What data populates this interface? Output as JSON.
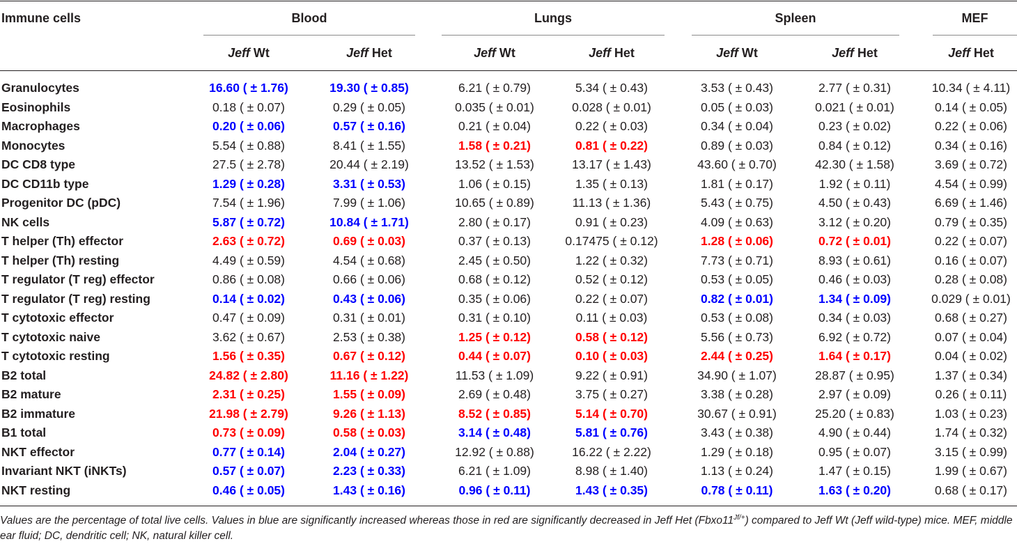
{
  "header": {
    "row_label": "Immune cells",
    "groups": [
      "Blood",
      "Lungs",
      "Spleen",
      "MEF"
    ],
    "jeff": "Jeff",
    "columns": [
      {
        "geno": "Wt"
      },
      {
        "geno": "Het"
      },
      {
        "geno": "Wt"
      },
      {
        "geno": "Het"
      },
      {
        "geno": "Wt"
      },
      {
        "geno": "Het"
      },
      {
        "geno": "Het"
      }
    ]
  },
  "legend_colors": {
    "increased": "#0000ff",
    "decreased": "#ff0000"
  },
  "rows": [
    {
      "label": "Granulocytes",
      "cells": [
        {
          "v": "16.60 ( ± 1.76)",
          "s": "up"
        },
        {
          "v": "19.30 ( ± 0.85)",
          "s": "up"
        },
        {
          "v": "6.21 ( ± 0.79)",
          "s": ""
        },
        {
          "v": "5.34 ( ± 0.43)",
          "s": ""
        },
        {
          "v": "3.53 ( ± 0.43)",
          "s": ""
        },
        {
          "v": "2.77 ( ± 0.31)",
          "s": ""
        },
        {
          "v": "10.34 ( ± 4.11)",
          "s": ""
        }
      ]
    },
    {
      "label": "Eosinophils",
      "cells": [
        {
          "v": "0.18 ( ± 0.07)",
          "s": ""
        },
        {
          "v": "0.29 ( ± 0.05)",
          "s": ""
        },
        {
          "v": "0.035 ( ± 0.01)",
          "s": ""
        },
        {
          "v": "0.028 ( ± 0.01)",
          "s": ""
        },
        {
          "v": "0.05 ( ± 0.03)",
          "s": ""
        },
        {
          "v": "0.021 ( ± 0.01)",
          "s": ""
        },
        {
          "v": "0.14 ( ± 0.05)",
          "s": ""
        }
      ]
    },
    {
      "label": "Macrophages",
      "cells": [
        {
          "v": "0.20 ( ± 0.06)",
          "s": "up"
        },
        {
          "v": "0.57 ( ± 0.16)",
          "s": "up"
        },
        {
          "v": "0.21 ( ± 0.04)",
          "s": ""
        },
        {
          "v": "0.22 ( ± 0.03)",
          "s": ""
        },
        {
          "v": "0.34 ( ± 0.04)",
          "s": ""
        },
        {
          "v": "0.23 ( ± 0.02)",
          "s": ""
        },
        {
          "v": "0.22 ( ± 0.06)",
          "s": ""
        }
      ]
    },
    {
      "label": "Monocytes",
      "cells": [
        {
          "v": "5.54 ( ± 0.88)",
          "s": ""
        },
        {
          "v": "8.41 ( ± 1.55)",
          "s": ""
        },
        {
          "v": "1.58 ( ± 0.21)",
          "s": "down"
        },
        {
          "v": "0.81 ( ± 0.22)",
          "s": "down"
        },
        {
          "v": "0.89 ( ± 0.03)",
          "s": ""
        },
        {
          "v": "0.84 ( ± 0.12)",
          "s": ""
        },
        {
          "v": "0.34 ( ± 0.16)",
          "s": ""
        }
      ]
    },
    {
      "label": "DC CD8 type",
      "cells": [
        {
          "v": "27.5 ( ± 2.78)",
          "s": ""
        },
        {
          "v": "20.44 ( ± 2.19)",
          "s": ""
        },
        {
          "v": "13.52 ( ± 1.53)",
          "s": ""
        },
        {
          "v": "13.17 ( ± 1.43)",
          "s": ""
        },
        {
          "v": "43.60 ( ± 0.70)",
          "s": ""
        },
        {
          "v": "42.30 ( ± 1.58)",
          "s": ""
        },
        {
          "v": "3.69 ( ± 0.72)",
          "s": ""
        }
      ]
    },
    {
      "label": "DC CD11b type",
      "cells": [
        {
          "v": "1.29 ( ± 0.28)",
          "s": "up"
        },
        {
          "v": "3.31 ( ± 0.53)",
          "s": "up"
        },
        {
          "v": "1.06 ( ± 0.15)",
          "s": ""
        },
        {
          "v": "1.35 ( ± 0.13)",
          "s": ""
        },
        {
          "v": "1.81 ( ± 0.17)",
          "s": ""
        },
        {
          "v": "1.92 ( ± 0.11)",
          "s": ""
        },
        {
          "v": "4.54 ( ± 0.99)",
          "s": ""
        }
      ]
    },
    {
      "label": "Progenitor DC (pDC)",
      "cells": [
        {
          "v": "7.54 ( ± 1.96)",
          "s": ""
        },
        {
          "v": "7.99 ( ± 1.06)",
          "s": ""
        },
        {
          "v": "10.65 ( ± 0.89)",
          "s": ""
        },
        {
          "v": "11.13 ( ± 1.36)",
          "s": ""
        },
        {
          "v": "5.43 ( ± 0.75)",
          "s": ""
        },
        {
          "v": "4.50 ( ± 0.43)",
          "s": ""
        },
        {
          "v": "6.69 ( ± 1.46)",
          "s": ""
        }
      ]
    },
    {
      "label": "NK cells",
      "cells": [
        {
          "v": "5.87 ( ± 0.72)",
          "s": "up"
        },
        {
          "v": "10.84 ( ± 1.71)",
          "s": "up"
        },
        {
          "v": "2.80 ( ± 0.17)",
          "s": ""
        },
        {
          "v": "0.91 ( ± 0.23)",
          "s": ""
        },
        {
          "v": "4.09 ( ± 0.63)",
          "s": ""
        },
        {
          "v": "3.12 ( ± 0.20)",
          "s": ""
        },
        {
          "v": "0.79 ( ± 0.35)",
          "s": ""
        }
      ]
    },
    {
      "label": "T helper (Th) effector",
      "cells": [
        {
          "v": "2.63 ( ± 0.72)",
          "s": "down"
        },
        {
          "v": "0.69 ( ± 0.03)",
          "s": "down"
        },
        {
          "v": "0.37 ( ± 0.13)",
          "s": ""
        },
        {
          "v": "0.17475 ( ± 0.12)",
          "s": ""
        },
        {
          "v": "1.28 ( ± 0.06)",
          "s": "down"
        },
        {
          "v": "0.72 ( ± 0.01)",
          "s": "down"
        },
        {
          "v": "0.22 ( ± 0.07)",
          "s": ""
        }
      ]
    },
    {
      "label": "T helper (Th) resting",
      "cells": [
        {
          "v": "4.49 ( ± 0.59)",
          "s": ""
        },
        {
          "v": "4.54 ( ± 0.68)",
          "s": ""
        },
        {
          "v": "2.45 ( ± 0.50)",
          "s": ""
        },
        {
          "v": "1.22 ( ± 0.32)",
          "s": ""
        },
        {
          "v": "7.73 ( ± 0.71)",
          "s": ""
        },
        {
          "v": "8.93 ( ± 0.61)",
          "s": ""
        },
        {
          "v": "0.16 ( ± 0.07)",
          "s": ""
        }
      ]
    },
    {
      "label": "T regulator (T reg) effector",
      "cells": [
        {
          "v": "0.86 ( ± 0.08)",
          "s": ""
        },
        {
          "v": "0.66 ( ± 0.06)",
          "s": ""
        },
        {
          "v": "0.68 ( ± 0.12)",
          "s": ""
        },
        {
          "v": "0.52 ( ± 0.12)",
          "s": ""
        },
        {
          "v": "0.53 ( ± 0.05)",
          "s": ""
        },
        {
          "v": "0.46 ( ± 0.03)",
          "s": ""
        },
        {
          "v": "0.28 ( ± 0.08)",
          "s": ""
        }
      ]
    },
    {
      "label": "T regulator (T reg) resting",
      "cells": [
        {
          "v": "0.14 ( ± 0.02)",
          "s": "up"
        },
        {
          "v": "0.43 ( ± 0.06)",
          "s": "up"
        },
        {
          "v": "0.35 ( ± 0.06)",
          "s": ""
        },
        {
          "v": "0.22 ( ± 0.07)",
          "s": ""
        },
        {
          "v": "0.82 ( ± 0.01)",
          "s": "up"
        },
        {
          "v": "1.34 ( ± 0.09)",
          "s": "up"
        },
        {
          "v": "0.029 ( ± 0.01)",
          "s": ""
        }
      ]
    },
    {
      "label": "T cytotoxic effector",
      "cells": [
        {
          "v": "0.47 ( ± 0.09)",
          "s": ""
        },
        {
          "v": "0.31 ( ± 0.01)",
          "s": ""
        },
        {
          "v": "0.31 ( ± 0.10)",
          "s": ""
        },
        {
          "v": "0.11 ( ± 0.03)",
          "s": ""
        },
        {
          "v": "0.53 ( ± 0.08)",
          "s": ""
        },
        {
          "v": "0.34 ( ± 0.03)",
          "s": ""
        },
        {
          "v": "0.68 ( ± 0.27)",
          "s": ""
        }
      ]
    },
    {
      "label": "T cytotoxic naive",
      "cells": [
        {
          "v": "3.62 ( ± 0.67)",
          "s": ""
        },
        {
          "v": "2.53 ( ± 0.38)",
          "s": ""
        },
        {
          "v": "1.25 ( ± 0.12)",
          "s": "down"
        },
        {
          "v": "0.58 ( ± 0.12)",
          "s": "down"
        },
        {
          "v": "5.56 ( ± 0.73)",
          "s": ""
        },
        {
          "v": "6.92 ( ± 0.72)",
          "s": ""
        },
        {
          "v": "0.07 ( ± 0.04)",
          "s": ""
        }
      ]
    },
    {
      "label": "T cytotoxic resting",
      "cells": [
        {
          "v": "1.56 ( ± 0.35)",
          "s": "down"
        },
        {
          "v": "0.67 ( ± 0.12)",
          "s": "down"
        },
        {
          "v": "0.44 ( ± 0.07)",
          "s": "down"
        },
        {
          "v": "0.10 ( ± 0.03)",
          "s": "down"
        },
        {
          "v": "2.44 ( ± 0.25)",
          "s": "down"
        },
        {
          "v": "1.64 ( ± 0.17)",
          "s": "down"
        },
        {
          "v": "0.04 ( ± 0.02)",
          "s": ""
        }
      ]
    },
    {
      "label": "B2 total",
      "cells": [
        {
          "v": "24.82 ( ± 2.80)",
          "s": "down"
        },
        {
          "v": "11.16 ( ± 1.22)",
          "s": "down"
        },
        {
          "v": "11.53 ( ± 1.09)",
          "s": ""
        },
        {
          "v": "9.22 ( ± 0.91)",
          "s": ""
        },
        {
          "v": "34.90 ( ± 1.07)",
          "s": ""
        },
        {
          "v": "28.87 ( ± 0.95)",
          "s": ""
        },
        {
          "v": "1.37 ( ± 0.34)",
          "s": ""
        }
      ]
    },
    {
      "label": "B2 mature",
      "cells": [
        {
          "v": "2.31 ( ± 0.25)",
          "s": "down"
        },
        {
          "v": "1.55 ( ± 0.09)",
          "s": "down"
        },
        {
          "v": "2.69 ( ± 0.48)",
          "s": ""
        },
        {
          "v": "3.75 ( ± 0.27)",
          "s": ""
        },
        {
          "v": "3.38 ( ± 0.28)",
          "s": ""
        },
        {
          "v": "2.97 ( ± 0.09)",
          "s": ""
        },
        {
          "v": "0.26 ( ± 0.11)",
          "s": ""
        }
      ]
    },
    {
      "label": "B2 immature",
      "cells": [
        {
          "v": "21.98 ( ± 2.79)",
          "s": "down"
        },
        {
          "v": "9.26 ( ± 1.13)",
          "s": "down"
        },
        {
          "v": "8.52 ( ± 0.85)",
          "s": "down"
        },
        {
          "v": "5.14 ( ± 0.70)",
          "s": "down"
        },
        {
          "v": "30.67 ( ± 0.91)",
          "s": ""
        },
        {
          "v": "25.20 ( ± 0.83)",
          "s": ""
        },
        {
          "v": "1.03 ( ± 0.23)",
          "s": ""
        }
      ]
    },
    {
      "label": "B1 total",
      "cells": [
        {
          "v": "0.73 ( ± 0.09)",
          "s": "down"
        },
        {
          "v": "0.58 ( ± 0.03)",
          "s": "down"
        },
        {
          "v": "3.14 ( ± 0.48)",
          "s": "up"
        },
        {
          "v": "5.81 ( ± 0.76)",
          "s": "up"
        },
        {
          "v": "3.43 ( ± 0.38)",
          "s": ""
        },
        {
          "v": "4.90 ( ± 0.44)",
          "s": ""
        },
        {
          "v": "1.74 ( ± 0.32)",
          "s": ""
        }
      ]
    },
    {
      "label": "NKT effector",
      "cells": [
        {
          "v": "0.77 ( ± 0.14)",
          "s": "up"
        },
        {
          "v": "2.04 ( ± 0.27)",
          "s": "up"
        },
        {
          "v": "12.92 ( ± 0.88)",
          "s": ""
        },
        {
          "v": "16.22 ( ± 2.22)",
          "s": ""
        },
        {
          "v": "1.29 ( ± 0.18)",
          "s": ""
        },
        {
          "v": "0.95 ( ± 0.07)",
          "s": ""
        },
        {
          "v": "3.15 ( ± 0.99)",
          "s": ""
        }
      ]
    },
    {
      "label": "Invariant NKT (iNKTs)",
      "cells": [
        {
          "v": "0.57 ( ± 0.07)",
          "s": "up"
        },
        {
          "v": "2.23 ( ± 0.33)",
          "s": "up"
        },
        {
          "v": "6.21 ( ± 1.09)",
          "s": ""
        },
        {
          "v": "8.98 ( ± 1.40)",
          "s": ""
        },
        {
          "v": "1.13 ( ± 0.24)",
          "s": ""
        },
        {
          "v": "1.47 ( ± 0.15)",
          "s": ""
        },
        {
          "v": "1.99 ( ± 0.67)",
          "s": ""
        }
      ]
    },
    {
      "label": "NKT resting",
      "cells": [
        {
          "v": "0.46 ( ± 0.05)",
          "s": "up"
        },
        {
          "v": "1.43 ( ± 0.16)",
          "s": "up"
        },
        {
          "v": "0.96 ( ± 0.11)",
          "s": "up"
        },
        {
          "v": "1.43 ( ± 0.35)",
          "s": "up"
        },
        {
          "v": "0.78 ( ± 0.11)",
          "s": "up"
        },
        {
          "v": "1.63 ( ± 0.20)",
          "s": "up"
        },
        {
          "v": "0.68 ( ± 0.17)",
          "s": ""
        }
      ]
    }
  ],
  "footnote": {
    "part1": "Values are the percentage of total live cells. Values in blue are significantly increased whereas those in red are significantly decreased in Jeff Het (Fbxo11",
    "sup": "Jf/+",
    "part2": ") compared to Jeff Wt (Jeff wild-type) mice. MEF, middle ear fluid; DC, dendritic cell; NK, natural killer cell."
  }
}
